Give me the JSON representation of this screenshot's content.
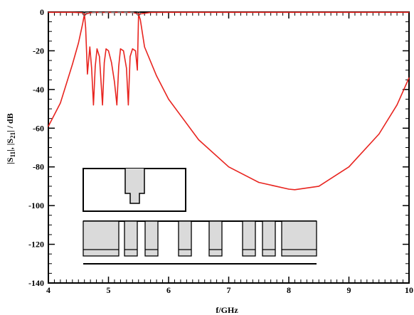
{
  "chart_data": {
    "type": "line",
    "title": "",
    "xlabel": "f/GHz",
    "ylabel": "|S11|, |S21| / dB",
    "xlim": [
      4,
      10
    ],
    "ylim": [
      -140,
      0
    ],
    "x_ticks": [
      "4",
      "5",
      "6",
      "7",
      "8",
      "9",
      "10"
    ],
    "y_ticks": [
      "0",
      "-20",
      "-40",
      "-60",
      "-80",
      "-100",
      "-120",
      "-140"
    ],
    "grid": false,
    "legend": "none",
    "series": [
      {
        "color": "#e8241f",
        "x": [
          4.0,
          4.2,
          4.4,
          4.5,
          4.57,
          4.6,
          4.62,
          4.65,
          4.69,
          4.72,
          4.75,
          4.78,
          4.81,
          4.85,
          4.9,
          4.93,
          4.96,
          5.0,
          5.05,
          5.1,
          5.14,
          5.17,
          5.2,
          5.25,
          5.3,
          5.33,
          5.36,
          5.4,
          5.45,
          5.48,
          5.5,
          5.53,
          5.6,
          5.8,
          6.0,
          6.5,
          7.0,
          7.5,
          8.0,
          8.1,
          8.5,
          9.0,
          9.5,
          9.8,
          10.0
        ],
        "y": [
          -59,
          -47,
          -27,
          -16,
          -6,
          -1,
          -8,
          -32,
          -18,
          -29,
          -48,
          -28,
          -19,
          -23,
          -48,
          -26,
          -19,
          -20,
          -26,
          -36,
          -48,
          -28,
          -19,
          -20,
          -29,
          -48,
          -23,
          -19,
          -20,
          -30,
          -1,
          -4,
          -18,
          -33,
          -45,
          -66,
          -80,
          -88,
          -91.5,
          -91.8,
          -90,
          -80,
          -63,
          -48,
          -34
        ]
      },
      {
        "color": "#e8241f",
        "x": [
          4.0,
          4.2,
          4.4,
          4.56,
          4.6,
          4.7,
          4.8,
          4.9,
          5.0,
          5.1,
          5.2,
          5.3,
          5.4,
          5.48,
          5.52,
          5.7,
          6.0,
          7.0,
          8.0,
          9.0,
          10.0
        ],
        "y": [
          -0.1,
          -0.1,
          -0.1,
          -0.3,
          -1.2,
          -0.3,
          -0.1,
          -0.2,
          -0.1,
          -0.2,
          -0.1,
          -0.2,
          -0.2,
          -0.8,
          -1.0,
          -0.2,
          -0.1,
          -0.1,
          -0.1,
          -0.1,
          -0.1
        ]
      }
    ]
  },
  "inset": {
    "fill": "#dadada"
  }
}
